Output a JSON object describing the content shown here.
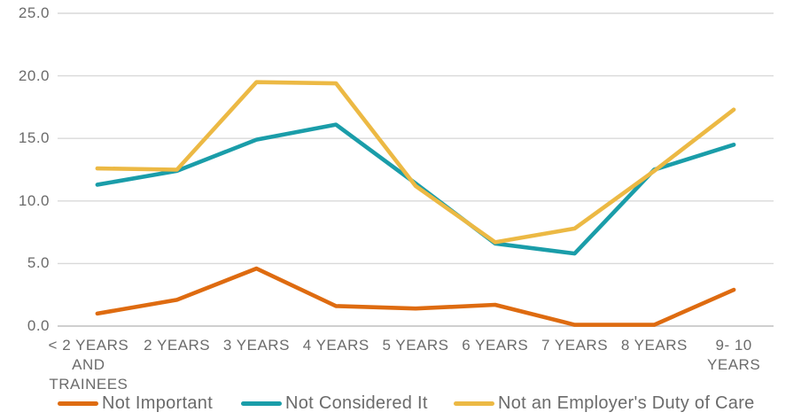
{
  "chart_data": {
    "type": "line",
    "title": "",
    "xlabel": "",
    "ylabel": "",
    "categories": [
      "< 2 YEARS\nAND\nTRAINEES",
      "2 YEARS",
      "3 YEARS",
      "4 YEARS",
      "5 YEARS",
      "6 YEARS",
      "7 YEARS",
      "8 YEARS",
      "9- 10\nYEARS"
    ],
    "series": [
      {
        "name": "Not Important",
        "color": "#DE6B10",
        "values": [
          1.0,
          2.1,
          4.6,
          1.6,
          1.4,
          1.7,
          0.1,
          0.1,
          2.9
        ]
      },
      {
        "name": "Not Considered It",
        "color": "#1A9DA9",
        "values": [
          11.3,
          12.4,
          14.9,
          16.1,
          11.4,
          6.6,
          5.8,
          12.5,
          14.5
        ]
      },
      {
        "name": "Not an Employer's Duty of Care",
        "color": "#ECB944",
        "values": [
          12.6,
          12.5,
          19.5,
          19.4,
          11.2,
          6.7,
          7.8,
          12.4,
          17.3
        ]
      }
    ],
    "yticks": [
      "25.0",
      "20.0",
      "15.0",
      "10.0",
      "5.0",
      "0.0"
    ],
    "ytick_values": [
      25,
      20,
      15,
      10,
      5,
      0
    ],
    "ylim": [
      0,
      25
    ],
    "grid": "horizontal",
    "legend_position": "bottom"
  },
  "colors": {
    "gridline": "#D9D9D9",
    "baseline": "#C8C8C8",
    "axis_text": "#6B6B6B"
  }
}
